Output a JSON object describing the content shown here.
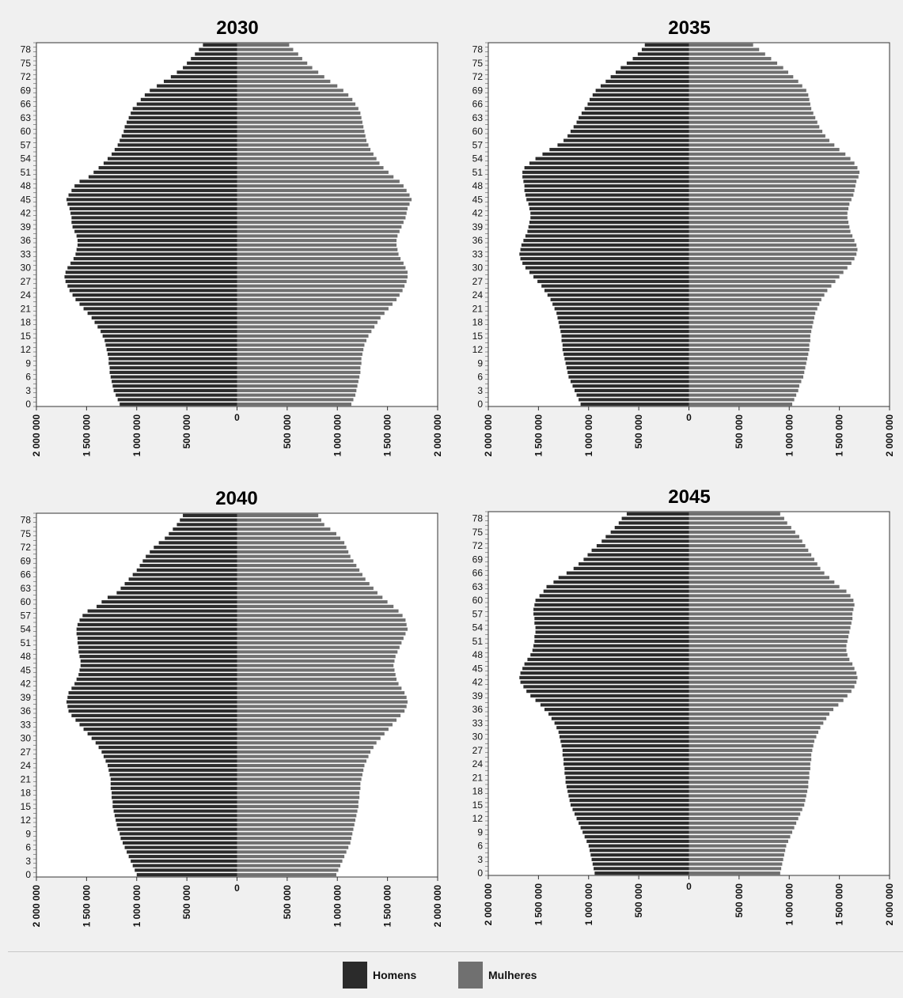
{
  "colors": {
    "men": "#2b2b2b",
    "women": "#707070",
    "panel_bg": "#ffffff",
    "page_bg": "#f0f0f0"
  },
  "legend": {
    "men_label": "Homens",
    "women_label": "Mulheres"
  },
  "chart_data": [
    {
      "type": "bar",
      "title": "2030",
      "orientation": "horizontal-pyramid",
      "age_range": [
        0,
        79
      ],
      "xlim": [
        -2000000,
        2000000
      ],
      "x_ticks": [
        "2 000 000",
        "1 500 000",
        "1 000 000",
        "500 000",
        "0",
        "500 000",
        "1 000 000",
        "1 500 000",
        "2 000 000"
      ],
      "y_tick_labels": [
        "0",
        "3",
        "6",
        "9",
        "12",
        "15",
        "18",
        "21",
        "24",
        "27",
        "30",
        "33",
        "36",
        "39",
        "42",
        "45",
        "48",
        "51",
        "54",
        "57",
        "60",
        "63",
        "66",
        "69",
        "72",
        "75",
        "78"
      ],
      "series": [
        {
          "name": "Homens",
          "values": [
            1170000,
            1190000,
            1210000,
            1230000,
            1240000,
            1250000,
            1260000,
            1270000,
            1270000,
            1280000,
            1280000,
            1290000,
            1300000,
            1310000,
            1320000,
            1340000,
            1360000,
            1390000,
            1420000,
            1450000,
            1490000,
            1530000,
            1570000,
            1610000,
            1640000,
            1670000,
            1690000,
            1710000,
            1720000,
            1710000,
            1690000,
            1660000,
            1630000,
            1610000,
            1600000,
            1590000,
            1590000,
            1600000,
            1620000,
            1640000,
            1650000,
            1650000,
            1660000,
            1670000,
            1690000,
            1700000,
            1680000,
            1650000,
            1620000,
            1570000,
            1480000,
            1430000,
            1380000,
            1330000,
            1290000,
            1250000,
            1220000,
            1190000,
            1170000,
            1150000,
            1130000,
            1120000,
            1100000,
            1080000,
            1060000,
            1040000,
            1000000,
            960000,
            920000,
            870000,
            800000,
            730000,
            660000,
            600000,
            540000,
            500000,
            460000,
            420000,
            380000,
            340000
          ]
        },
        {
          "name": "Mulheres",
          "values": [
            1140000,
            1160000,
            1180000,
            1190000,
            1200000,
            1210000,
            1220000,
            1230000,
            1230000,
            1240000,
            1240000,
            1250000,
            1260000,
            1270000,
            1290000,
            1310000,
            1340000,
            1370000,
            1400000,
            1430000,
            1470000,
            1510000,
            1550000,
            1590000,
            1620000,
            1650000,
            1670000,
            1690000,
            1700000,
            1700000,
            1680000,
            1660000,
            1630000,
            1610000,
            1600000,
            1590000,
            1590000,
            1600000,
            1620000,
            1640000,
            1660000,
            1680000,
            1690000,
            1700000,
            1720000,
            1740000,
            1720000,
            1690000,
            1660000,
            1620000,
            1560000,
            1510000,
            1460000,
            1420000,
            1390000,
            1360000,
            1330000,
            1310000,
            1290000,
            1280000,
            1270000,
            1260000,
            1250000,
            1240000,
            1230000,
            1210000,
            1180000,
            1150000,
            1110000,
            1060000,
            1000000,
            930000,
            870000,
            810000,
            750000,
            700000,
            650000,
            610000,
            560000,
            520000
          ]
        }
      ]
    },
    {
      "type": "bar",
      "title": "2035",
      "orientation": "horizontal-pyramid",
      "age_range": [
        0,
        79
      ],
      "xlim": [
        -2000000,
        2000000
      ],
      "x_ticks": [
        "2 000 000",
        "1 500 000",
        "1 000 000",
        "500 000",
        "0",
        "500 000",
        "1 000 000",
        "1 500 000",
        "2 000 000"
      ],
      "y_tick_labels": [
        "0",
        "3",
        "6",
        "9",
        "12",
        "15",
        "18",
        "21",
        "24",
        "27",
        "30",
        "33",
        "36",
        "39",
        "42",
        "45",
        "48",
        "51",
        "54",
        "57",
        "60",
        "63",
        "66",
        "69",
        "72",
        "75",
        "78"
      ],
      "series": [
        {
          "name": "Homens",
          "values": [
            1080000,
            1100000,
            1120000,
            1140000,
            1160000,
            1180000,
            1200000,
            1210000,
            1220000,
            1230000,
            1240000,
            1250000,
            1260000,
            1260000,
            1270000,
            1270000,
            1280000,
            1290000,
            1300000,
            1310000,
            1320000,
            1340000,
            1360000,
            1380000,
            1410000,
            1440000,
            1470000,
            1510000,
            1550000,
            1590000,
            1630000,
            1660000,
            1680000,
            1690000,
            1680000,
            1670000,
            1650000,
            1630000,
            1610000,
            1600000,
            1590000,
            1580000,
            1580000,
            1590000,
            1600000,
            1620000,
            1630000,
            1640000,
            1640000,
            1650000,
            1660000,
            1660000,
            1640000,
            1590000,
            1530000,
            1460000,
            1390000,
            1310000,
            1250000,
            1210000,
            1180000,
            1150000,
            1120000,
            1100000,
            1070000,
            1040000,
            1010000,
            990000,
            960000,
            930000,
            880000,
            830000,
            780000,
            730000,
            680000,
            620000,
            560000,
            510000,
            470000,
            440000
          ]
        },
        {
          "name": "Mulheres",
          "values": [
            1030000,
            1050000,
            1070000,
            1090000,
            1100000,
            1120000,
            1140000,
            1150000,
            1160000,
            1170000,
            1180000,
            1190000,
            1200000,
            1200000,
            1210000,
            1210000,
            1220000,
            1230000,
            1240000,
            1250000,
            1260000,
            1280000,
            1300000,
            1320000,
            1350000,
            1380000,
            1420000,
            1460000,
            1500000,
            1540000,
            1580000,
            1620000,
            1650000,
            1670000,
            1680000,
            1670000,
            1650000,
            1630000,
            1610000,
            1600000,
            1590000,
            1580000,
            1580000,
            1590000,
            1600000,
            1620000,
            1640000,
            1650000,
            1660000,
            1670000,
            1690000,
            1700000,
            1680000,
            1650000,
            1610000,
            1560000,
            1500000,
            1450000,
            1400000,
            1360000,
            1330000,
            1300000,
            1280000,
            1260000,
            1240000,
            1220000,
            1210000,
            1200000,
            1190000,
            1170000,
            1130000,
            1090000,
            1040000,
            990000,
            940000,
            880000,
            820000,
            760000,
            700000,
            640000
          ]
        }
      ]
    },
    {
      "type": "bar",
      "title": "2040",
      "orientation": "horizontal-pyramid",
      "age_range": [
        0,
        79
      ],
      "xlim": [
        -2000000,
        2000000
      ],
      "x_ticks": [
        "2 000 000",
        "1 500 000",
        "1 000 000",
        "500 000",
        "0",
        "500 000",
        "1 000 000",
        "1 500 000",
        "2 000 000"
      ],
      "y_tick_labels": [
        "0",
        "3",
        "6",
        "9",
        "12",
        "15",
        "18",
        "21",
        "24",
        "27",
        "30",
        "33",
        "36",
        "39",
        "42",
        "45",
        "48",
        "51",
        "54",
        "57",
        "60",
        "63",
        "66",
        "69",
        "72",
        "75",
        "78"
      ],
      "series": [
        {
          "name": "Homens",
          "values": [
            1000000,
            1020000,
            1040000,
            1060000,
            1080000,
            1100000,
            1120000,
            1140000,
            1160000,
            1170000,
            1190000,
            1200000,
            1210000,
            1220000,
            1230000,
            1240000,
            1240000,
            1250000,
            1250000,
            1260000,
            1260000,
            1260000,
            1270000,
            1280000,
            1290000,
            1310000,
            1330000,
            1350000,
            1380000,
            1410000,
            1450000,
            1490000,
            1530000,
            1570000,
            1610000,
            1650000,
            1680000,
            1690000,
            1700000,
            1690000,
            1680000,
            1650000,
            1620000,
            1600000,
            1580000,
            1570000,
            1560000,
            1560000,
            1570000,
            1580000,
            1580000,
            1590000,
            1590000,
            1600000,
            1600000,
            1590000,
            1570000,
            1540000,
            1490000,
            1400000,
            1350000,
            1290000,
            1200000,
            1160000,
            1120000,
            1080000,
            1040000,
            1000000,
            970000,
            940000,
            910000,
            870000,
            830000,
            780000,
            720000,
            680000,
            640000,
            600000,
            570000,
            540000
          ]
        },
        {
          "name": "Mulheres",
          "values": [
            990000,
            1010000,
            1030000,
            1050000,
            1070000,
            1090000,
            1110000,
            1130000,
            1140000,
            1150000,
            1160000,
            1170000,
            1180000,
            1190000,
            1200000,
            1210000,
            1210000,
            1220000,
            1220000,
            1230000,
            1230000,
            1240000,
            1250000,
            1260000,
            1270000,
            1290000,
            1310000,
            1330000,
            1360000,
            1390000,
            1430000,
            1470000,
            1510000,
            1550000,
            1590000,
            1630000,
            1670000,
            1690000,
            1700000,
            1690000,
            1670000,
            1640000,
            1610000,
            1590000,
            1580000,
            1570000,
            1560000,
            1570000,
            1580000,
            1600000,
            1620000,
            1640000,
            1660000,
            1680000,
            1700000,
            1690000,
            1680000,
            1650000,
            1610000,
            1560000,
            1500000,
            1450000,
            1400000,
            1360000,
            1320000,
            1280000,
            1250000,
            1220000,
            1190000,
            1160000,
            1130000,
            1110000,
            1090000,
            1070000,
            1030000,
            990000,
            930000,
            870000,
            840000,
            810000
          ]
        }
      ]
    },
    {
      "type": "bar",
      "title": "2045",
      "orientation": "horizontal-pyramid",
      "age_range": [
        0,
        79
      ],
      "xlim": [
        -2000000,
        2000000
      ],
      "x_ticks": [
        "2 000 000",
        "1 500 000",
        "1 000 000",
        "500 000",
        "0",
        "500 000",
        "1 000 000",
        "1 500 000",
        "2 000 000"
      ],
      "y_tick_labels": [
        "0",
        "3",
        "6",
        "9",
        "12",
        "15",
        "18",
        "21",
        "24",
        "27",
        "30",
        "33",
        "36",
        "39",
        "42",
        "45",
        "48",
        "51",
        "54",
        "57",
        "60",
        "63",
        "66",
        "69",
        "72",
        "75",
        "78"
      ],
      "series": [
        {
          "name": "Homens",
          "values": [
            940000,
            950000,
            960000,
            970000,
            980000,
            990000,
            1000000,
            1020000,
            1040000,
            1060000,
            1080000,
            1100000,
            1120000,
            1140000,
            1160000,
            1180000,
            1190000,
            1200000,
            1210000,
            1220000,
            1230000,
            1230000,
            1240000,
            1240000,
            1250000,
            1250000,
            1260000,
            1260000,
            1270000,
            1280000,
            1290000,
            1300000,
            1320000,
            1340000,
            1370000,
            1400000,
            1440000,
            1480000,
            1530000,
            1580000,
            1620000,
            1650000,
            1680000,
            1690000,
            1680000,
            1660000,
            1640000,
            1610000,
            1580000,
            1560000,
            1550000,
            1540000,
            1540000,
            1530000,
            1530000,
            1540000,
            1540000,
            1550000,
            1550000,
            1540000,
            1530000,
            1490000,
            1450000,
            1420000,
            1350000,
            1300000,
            1220000,
            1150000,
            1100000,
            1050000,
            1010000,
            970000,
            920000,
            870000,
            830000,
            780000,
            740000,
            700000,
            670000,
            620000
          ]
        },
        {
          "name": "Mulheres",
          "values": [
            910000,
            920000,
            930000,
            940000,
            950000,
            960000,
            970000,
            990000,
            1010000,
            1030000,
            1050000,
            1070000,
            1090000,
            1110000,
            1130000,
            1150000,
            1160000,
            1170000,
            1180000,
            1190000,
            1190000,
            1200000,
            1200000,
            1210000,
            1210000,
            1220000,
            1220000,
            1230000,
            1240000,
            1250000,
            1270000,
            1290000,
            1310000,
            1340000,
            1370000,
            1400000,
            1440000,
            1490000,
            1540000,
            1580000,
            1620000,
            1650000,
            1670000,
            1680000,
            1670000,
            1650000,
            1630000,
            1600000,
            1580000,
            1570000,
            1570000,
            1580000,
            1590000,
            1600000,
            1610000,
            1620000,
            1630000,
            1630000,
            1640000,
            1650000,
            1640000,
            1610000,
            1570000,
            1500000,
            1450000,
            1400000,
            1350000,
            1310000,
            1280000,
            1250000,
            1220000,
            1190000,
            1160000,
            1130000,
            1100000,
            1060000,
            1020000,
            980000,
            950000,
            910000
          ]
        }
      ]
    }
  ]
}
